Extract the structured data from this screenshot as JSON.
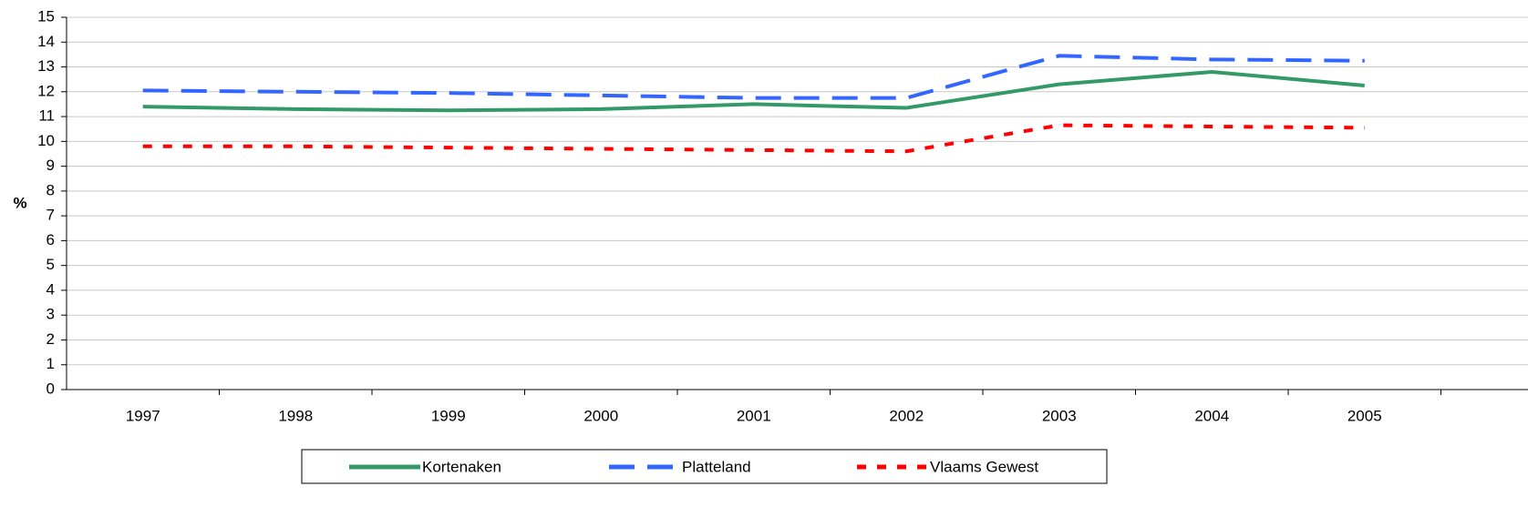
{
  "chart_data": {
    "type": "line",
    "y_label": "%",
    "categories": [
      "1997",
      "1998",
      "1999",
      "2000",
      "2001",
      "2002",
      "2003",
      "2004",
      "2005"
    ],
    "series": [
      {
        "name": "Kortenaken",
        "color": "#339966",
        "dash": "solid",
        "values": [
          11.4,
          11.3,
          11.25,
          11.3,
          11.5,
          11.35,
          12.3,
          12.8,
          12.25
        ]
      },
      {
        "name": "Platteland",
        "color": "#3366ff",
        "dash": "dashed",
        "values": [
          12.05,
          12.0,
          11.95,
          11.85,
          11.75,
          11.75,
          13.45,
          13.3,
          13.25
        ]
      },
      {
        "name": "Vlaams Gewest",
        "color": "#ff0000",
        "dash": "dotted",
        "values": [
          9.8,
          9.8,
          9.75,
          9.7,
          9.65,
          9.6,
          10.65,
          10.6,
          10.55
        ]
      }
    ],
    "ylim": [
      0,
      15
    ],
    "yticks": [
      0,
      1,
      2,
      3,
      4,
      5,
      6,
      7,
      8,
      9,
      10,
      11,
      12,
      13,
      14,
      15
    ],
    "grid": true,
    "legend": "bottom"
  }
}
